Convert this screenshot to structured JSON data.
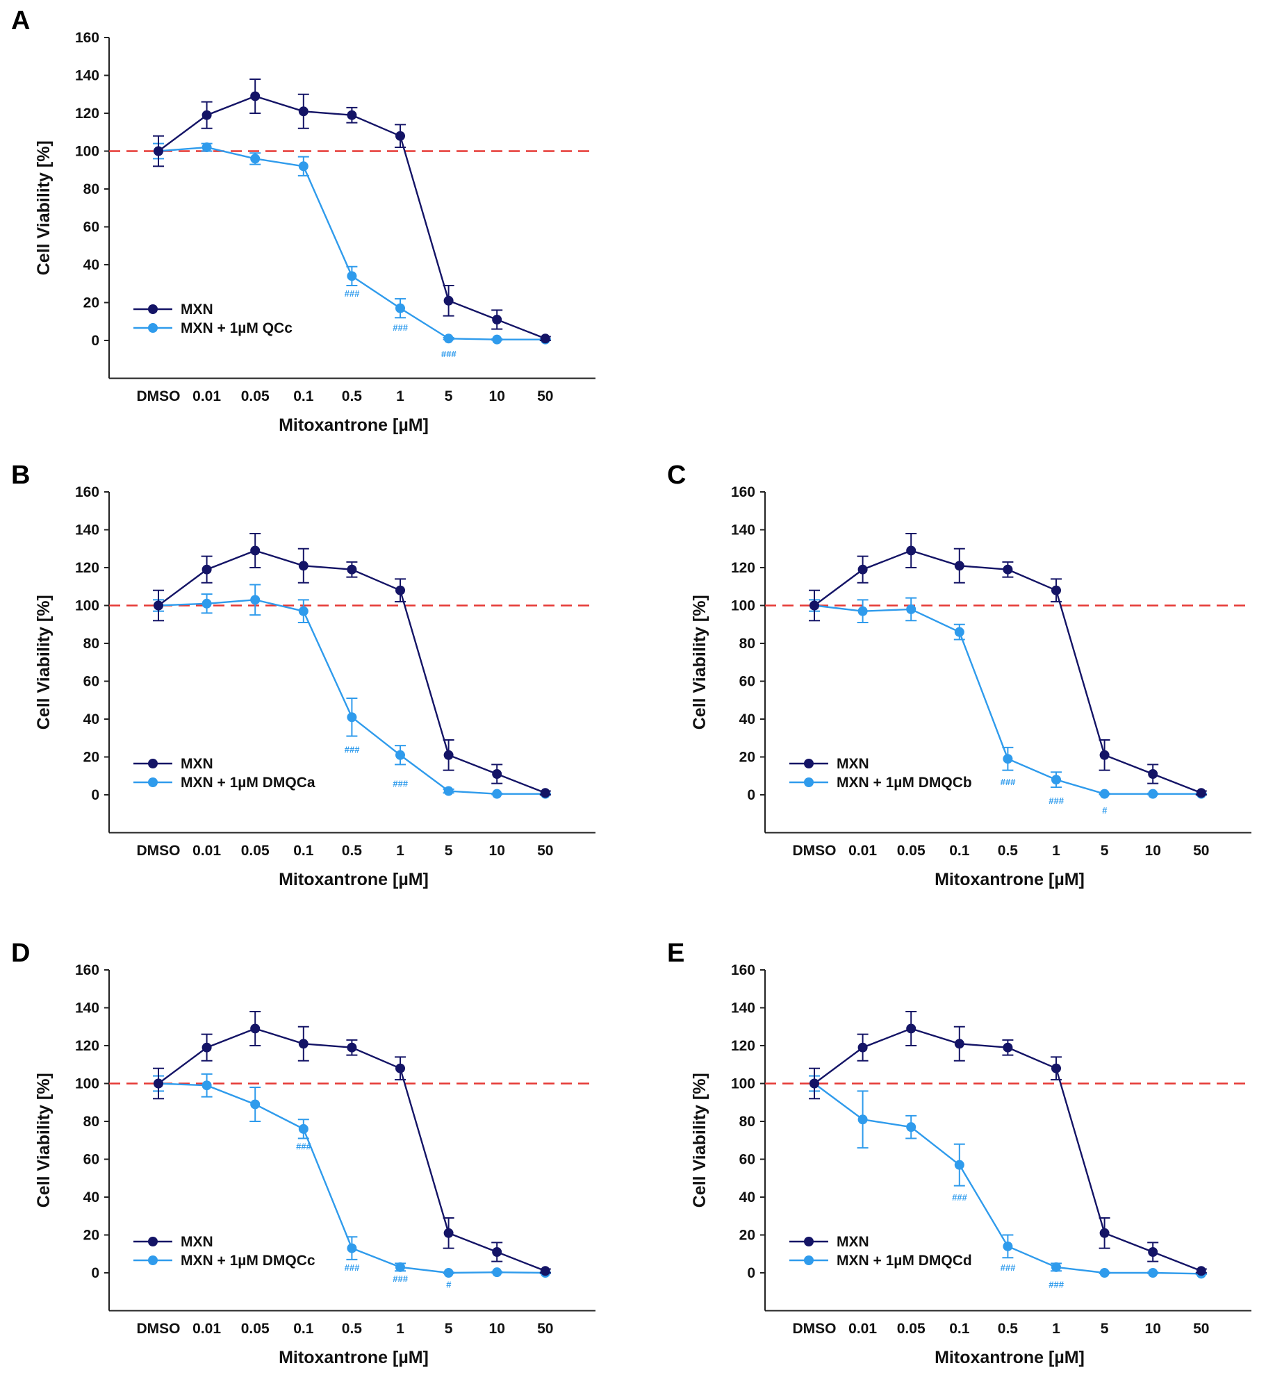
{
  "colors": {
    "mxn": "#141466",
    "combo": "#2f9bec",
    "reference": "#e53935",
    "axis": "#222222"
  },
  "shared": {
    "categories": [
      "DMSO",
      "0.01",
      "0.05",
      "0.1",
      "0.5",
      "1",
      "5",
      "10",
      "50"
    ],
    "xlabel": "Mitoxantrone [µM]",
    "ylabel": "Cell Viability [%]",
    "yticks": [
      0,
      20,
      40,
      60,
      80,
      100,
      120,
      140,
      160
    ],
    "ylim": [
      -20,
      160
    ],
    "reference_line": 100,
    "legend_position": "lower-left"
  },
  "chart_data": [
    {
      "panel": "A",
      "type": "line",
      "series": [
        {
          "name": "MXN",
          "values": [
            100,
            119,
            129,
            121,
            119,
            108,
            21,
            11,
            1
          ],
          "errors": [
            8,
            7,
            9,
            9,
            4,
            6,
            8,
            5,
            1
          ]
        },
        {
          "name": "MXN + 1µM QCc",
          "values": [
            100,
            102,
            96,
            92,
            34,
            17,
            1,
            0.5,
            0.5
          ],
          "errors": [
            4,
            2,
            3,
            5,
            5,
            5,
            0.5,
            0.3,
            0.3
          ]
        }
      ],
      "annotations": [
        {
          "category": "0.5",
          "text": "###",
          "y": 25
        },
        {
          "category": "1",
          "text": "###",
          "y": 7
        },
        {
          "category": "5",
          "text": "###",
          "y": -7
        }
      ]
    },
    {
      "panel": "B",
      "type": "line",
      "series": [
        {
          "name": "MXN",
          "values": [
            100,
            119,
            129,
            121,
            119,
            108,
            21,
            11,
            1
          ],
          "errors": [
            8,
            7,
            9,
            9,
            4,
            6,
            8,
            5,
            1
          ]
        },
        {
          "name": "MXN + 1µM DMQCa",
          "values": [
            100,
            101,
            103,
            97,
            41,
            21,
            2,
            0.5,
            0.5
          ],
          "errors": [
            3,
            5,
            8,
            6,
            10,
            5,
            1,
            0.3,
            0.3
          ]
        }
      ],
      "annotations": [
        {
          "category": "0.5",
          "text": "###",
          "y": 24
        },
        {
          "category": "1",
          "text": "###",
          "y": 6
        }
      ]
    },
    {
      "panel": "C",
      "type": "line",
      "series": [
        {
          "name": "MXN",
          "values": [
            100,
            119,
            129,
            121,
            119,
            108,
            21,
            11,
            1
          ],
          "errors": [
            8,
            7,
            9,
            9,
            4,
            6,
            8,
            5,
            1
          ]
        },
        {
          "name": "MXN + 1µM DMQCb",
          "values": [
            100,
            97,
            98,
            86,
            19,
            8,
            0.5,
            0.5,
            0.5
          ],
          "errors": [
            3,
            6,
            6,
            4,
            6,
            4,
            0.3,
            0.3,
            0.3
          ]
        }
      ],
      "annotations": [
        {
          "category": "0.5",
          "text": "###",
          "y": 7
        },
        {
          "category": "1",
          "text": "###",
          "y": -3
        },
        {
          "category": "5",
          "text": "#",
          "y": -8
        }
      ]
    },
    {
      "panel": "D",
      "type": "line",
      "series": [
        {
          "name": "MXN",
          "values": [
            100,
            119,
            129,
            121,
            119,
            108,
            21,
            11,
            1
          ],
          "errors": [
            8,
            7,
            9,
            9,
            4,
            6,
            8,
            5,
            1
          ]
        },
        {
          "name": "MXN + 1µM DMQCc",
          "values": [
            100,
            99,
            89,
            76,
            13,
            3,
            0,
            0.3,
            0
          ],
          "errors": [
            4,
            6,
            9,
            5,
            6,
            2,
            0.3,
            0.3,
            0.3
          ]
        }
      ],
      "annotations": [
        {
          "category": "0.1",
          "text": "###",
          "y": 67
        },
        {
          "category": "0.5",
          "text": "###",
          "y": 3
        },
        {
          "category": "1",
          "text": "###",
          "y": -3
        },
        {
          "category": "5",
          "text": "#",
          "y": -6
        }
      ]
    },
    {
      "panel": "E",
      "type": "line",
      "series": [
        {
          "name": "MXN",
          "values": [
            100,
            119,
            129,
            121,
            119,
            108,
            21,
            11,
            1
          ],
          "errors": [
            8,
            7,
            9,
            9,
            4,
            6,
            8,
            5,
            1
          ]
        },
        {
          "name": "MXN + 1µM DMQCd",
          "values": [
            100,
            81,
            77,
            57,
            14,
            3,
            0,
            0,
            -0.5
          ],
          "errors": [
            4,
            15,
            6,
            11,
            6,
            2,
            0.3,
            0.3,
            0.3
          ]
        }
      ],
      "annotations": [
        {
          "category": "0.1",
          "text": "###",
          "y": 40
        },
        {
          "category": "0.5",
          "text": "###",
          "y": 3
        },
        {
          "category": "1",
          "text": "###",
          "y": -6
        }
      ]
    }
  ]
}
